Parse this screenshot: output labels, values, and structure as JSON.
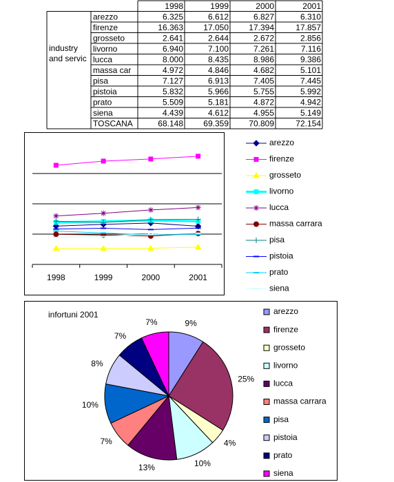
{
  "table": {
    "columns": [
      "1998",
      "1999",
      "2000",
      "2001"
    ],
    "group": [
      "industry",
      "and servic"
    ],
    "rows": [
      [
        "arezzo",
        "6.325",
        "6.612",
        "6.827",
        "6.310"
      ],
      [
        "firenze",
        "16.363",
        "17.050",
        "17.394",
        "17.857"
      ],
      [
        "grosseto",
        "2.641",
        "2.644",
        "2.672",
        "2.856"
      ],
      [
        "livorno",
        "6.940",
        "7.100",
        "7.261",
        "7.116"
      ],
      [
        "lucca",
        "8.000",
        "8.435",
        "8.986",
        "9.386"
      ],
      [
        "massa car",
        "4.972",
        "4.846",
        "4.682",
        "5.101"
      ],
      [
        "pisa",
        "7.127",
        "6.913",
        "7.405",
        "7.445"
      ],
      [
        "pistoia",
        "5.832",
        "5.966",
        "5.755",
        "5.992"
      ],
      [
        "prato",
        "5.509",
        "5.181",
        "4.872",
        "4.942"
      ],
      [
        "siena",
        "4.439",
        "4.612",
        "4.955",
        "5.149"
      ],
      [
        "TOSCANA",
        "68.148",
        "69.359",
        "70.809",
        "72.154"
      ]
    ]
  },
  "chart_data": [
    {
      "type": "line",
      "categories": [
        "1998",
        "1999",
        "2000",
        "2001"
      ],
      "ylim": [
        0,
        20
      ],
      "yticks": [
        5,
        10,
        15
      ],
      "grid": true,
      "legend": "right",
      "series": [
        {
          "name": "arezzo",
          "color": "#000080",
          "values": [
            6.325,
            6.612,
            6.827,
            6.31
          ]
        },
        {
          "name": "firenze",
          "color": "#ff00ff",
          "values": [
            16.363,
            17.05,
            17.394,
            17.857
          ]
        },
        {
          "name": "grosseto",
          "color": "#ffff00",
          "values": [
            2.641,
            2.644,
            2.672,
            2.856
          ]
        },
        {
          "name": "livorno",
          "color": "#00ffff",
          "values": [
            6.94,
            7.1,
            7.261,
            7.116
          ]
        },
        {
          "name": "lucca",
          "color": "#800080",
          "values": [
            8.0,
            8.435,
            8.986,
            9.386
          ]
        },
        {
          "name": "massa carrara",
          "color": "#800000",
          "values": [
            4.972,
            4.846,
            4.682,
            5.101
          ]
        },
        {
          "name": "pisa",
          "color": "#008080",
          "values": [
            7.127,
            6.913,
            7.405,
            7.445
          ]
        },
        {
          "name": "pistoia",
          "color": "#0000ff",
          "values": [
            5.832,
            5.966,
            5.755,
            5.992
          ]
        },
        {
          "name": "prato",
          "color": "#00ccff",
          "values": [
            5.509,
            5.181,
            4.872,
            4.942
          ]
        },
        {
          "name": "siena",
          "color": "#ccffff",
          "values": [
            4.439,
            4.612,
            4.955,
            5.149
          ]
        }
      ]
    },
    {
      "type": "pie",
      "title": "infortuni 2001",
      "legend": "right",
      "categories": [
        "arezzo",
        "firenze",
        "grosseto",
        "livorno",
        "lucca",
        "massa carrara",
        "pisa",
        "pistoia",
        "prato",
        "siena"
      ],
      "values": [
        9,
        25,
        4,
        10,
        13,
        7,
        10,
        8,
        7,
        7
      ],
      "value_labels": [
        "9%",
        "25%",
        "4%",
        "10%",
        "13%",
        "7%",
        "10%",
        "8%",
        "7%",
        "7%"
      ],
      "colors": [
        "#9999ff",
        "#993366",
        "#ffffcc",
        "#ccffff",
        "#660066",
        "#ff8080",
        "#0066cc",
        "#ccccff",
        "#000080",
        "#ff00ff"
      ]
    }
  ]
}
